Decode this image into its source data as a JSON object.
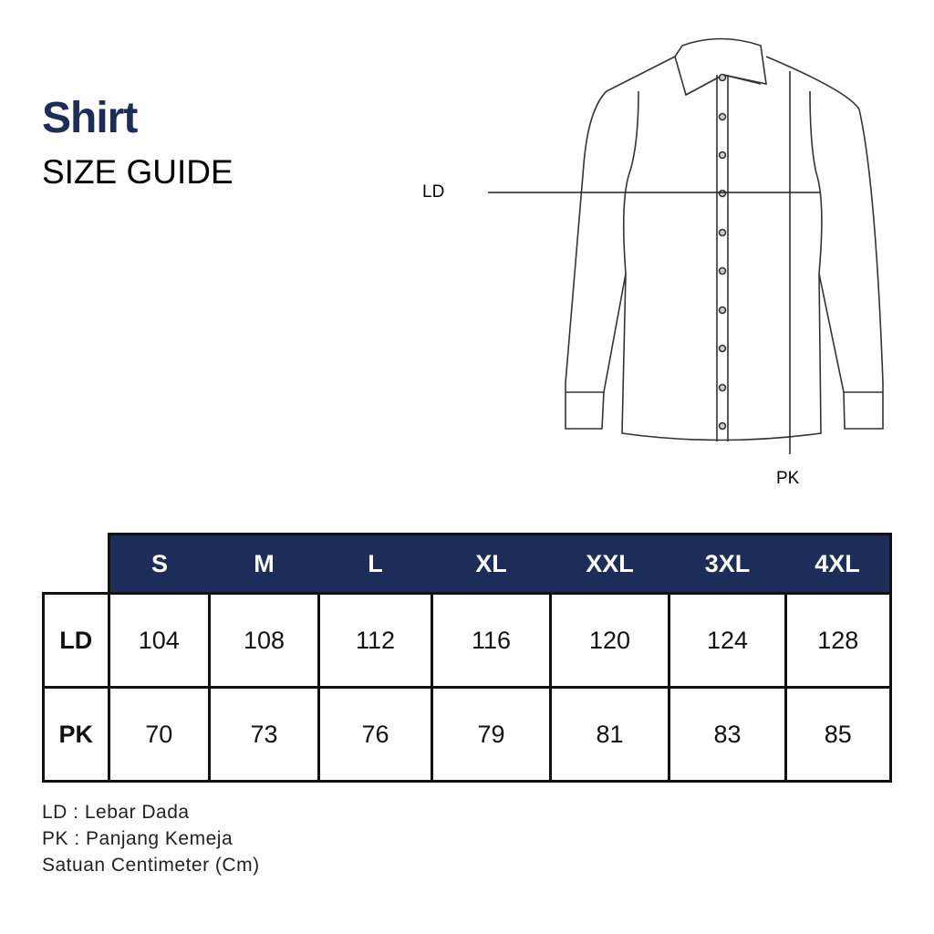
{
  "title": "Shirt",
  "subtitle": "SIZE GUIDE",
  "diagram": {
    "label_chest": "LD",
    "label_length": "PK"
  },
  "table": {
    "sizes": [
      "S",
      "M",
      "L",
      "XL",
      "XXL",
      "3XL",
      "4XL"
    ],
    "rows": [
      {
        "label": "LD",
        "values": [
          "104",
          "108",
          "112",
          "116",
          "120",
          "124",
          "128"
        ]
      },
      {
        "label": "PK",
        "values": [
          "70",
          "73",
          "76",
          "79",
          "81",
          "83",
          "85"
        ]
      }
    ],
    "header_color": "#1b2d58"
  },
  "legend": [
    "LD : Lebar Dada",
    "PK : Panjang Kemeja",
    "Satuan Centimeter (Cm)"
  ]
}
